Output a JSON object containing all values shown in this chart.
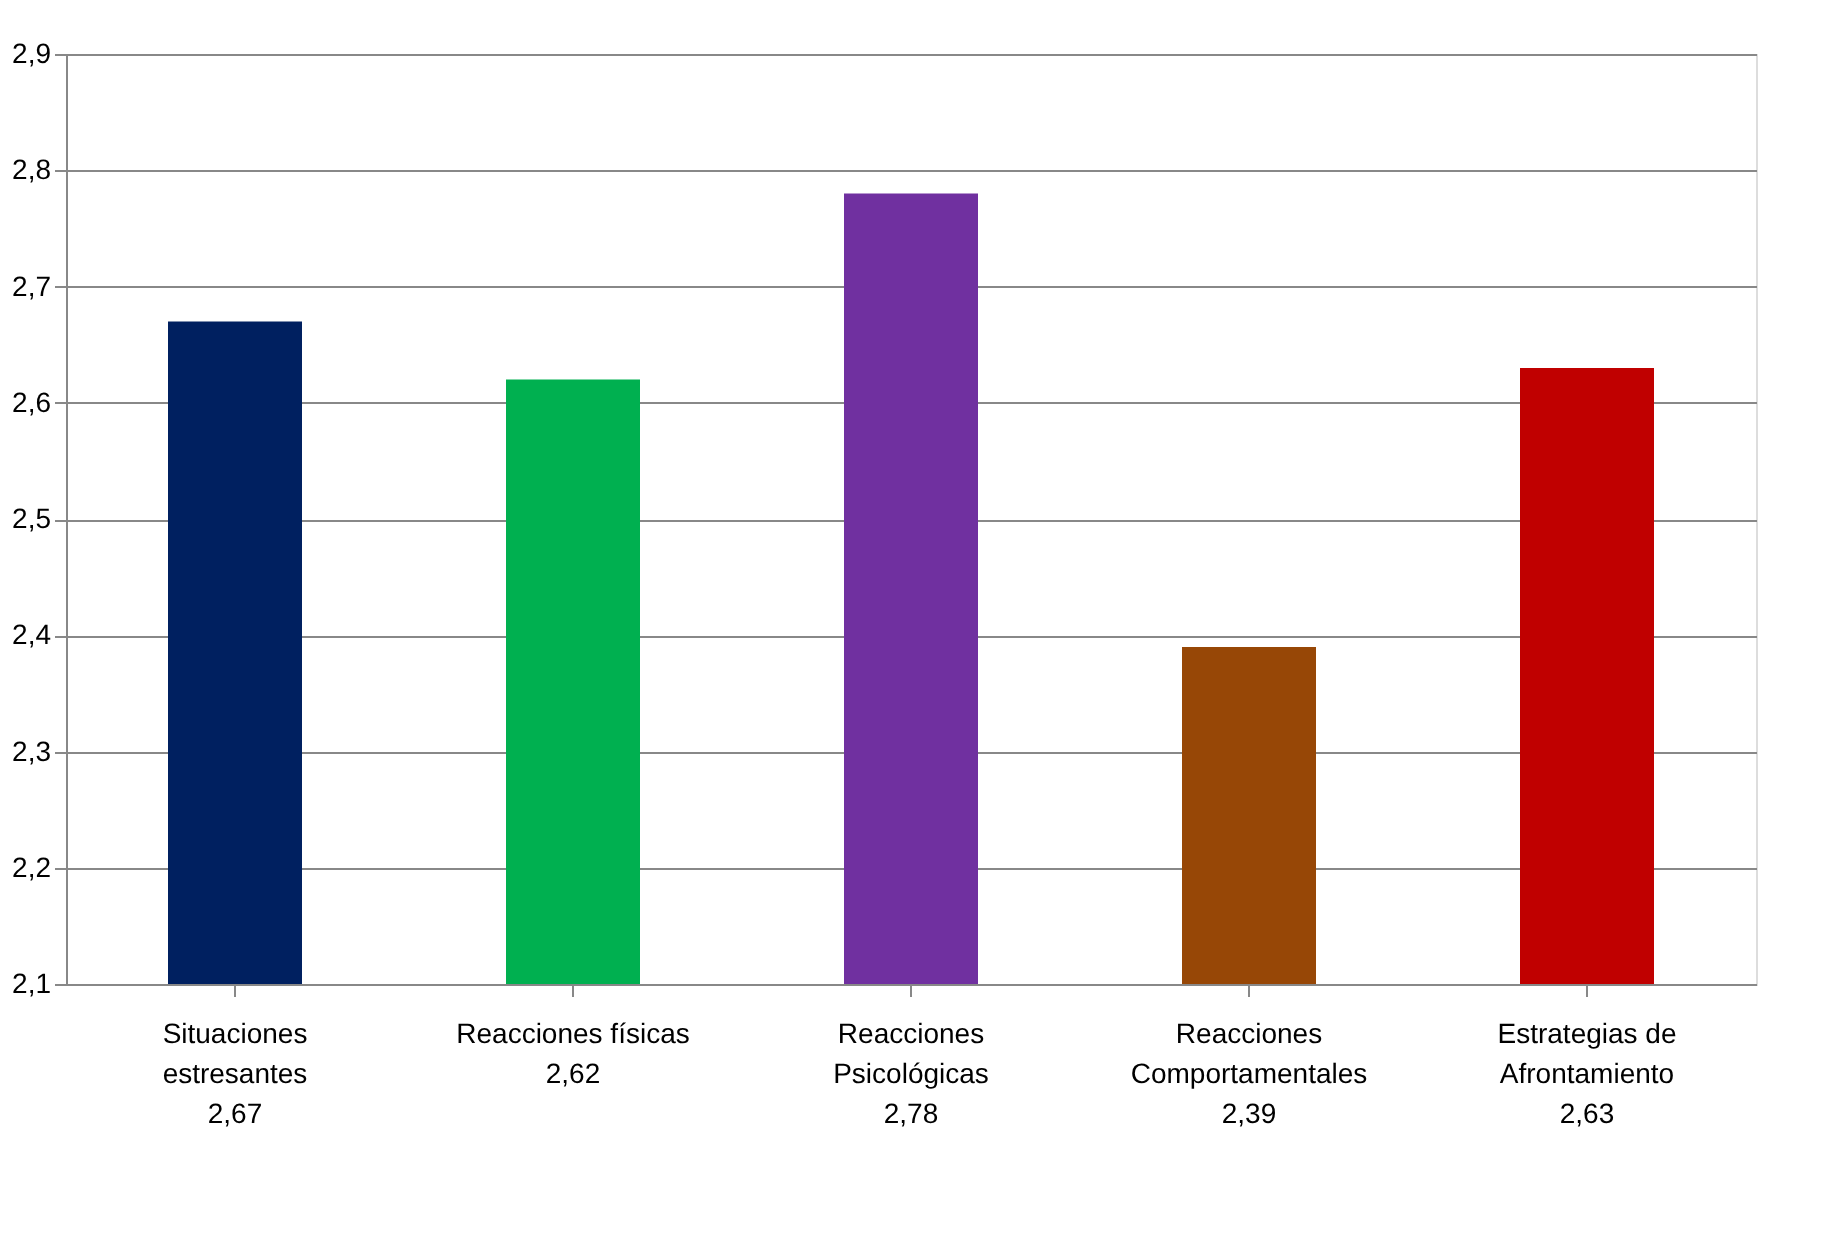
{
  "chart_data": {
    "type": "bar",
    "categories": [
      "Situaciones\nestresantes\n2,67",
      "Reacciones físicas\n2,62",
      "Reacciones\nPsicológicas\n2,78",
      "Reacciones\nComportamentales\n2,39",
      "Estrategias de\nAfrontamiento\n2,63"
    ],
    "values": [
      2.67,
      2.62,
      2.78,
      2.39,
      2.63
    ],
    "colors": [
      "#002060",
      "#00b050",
      "#7030a0",
      "#974706",
      "#c00000"
    ],
    "ylim": [
      2.1,
      2.9
    ],
    "yticks": [
      {
        "value": 2.1,
        "label": "2,1"
      },
      {
        "value": 2.2,
        "label": "2,2"
      },
      {
        "value": 2.3,
        "label": "2,3"
      },
      {
        "value": 2.4,
        "label": "2,4"
      },
      {
        "value": 2.5,
        "label": "2,5"
      },
      {
        "value": 2.6,
        "label": "2,6"
      },
      {
        "value": 2.7,
        "label": "2,7"
      },
      {
        "value": 2.8,
        "label": "2,8"
      },
      {
        "value": 2.9,
        "label": "2,9"
      }
    ],
    "grid": "y"
  }
}
